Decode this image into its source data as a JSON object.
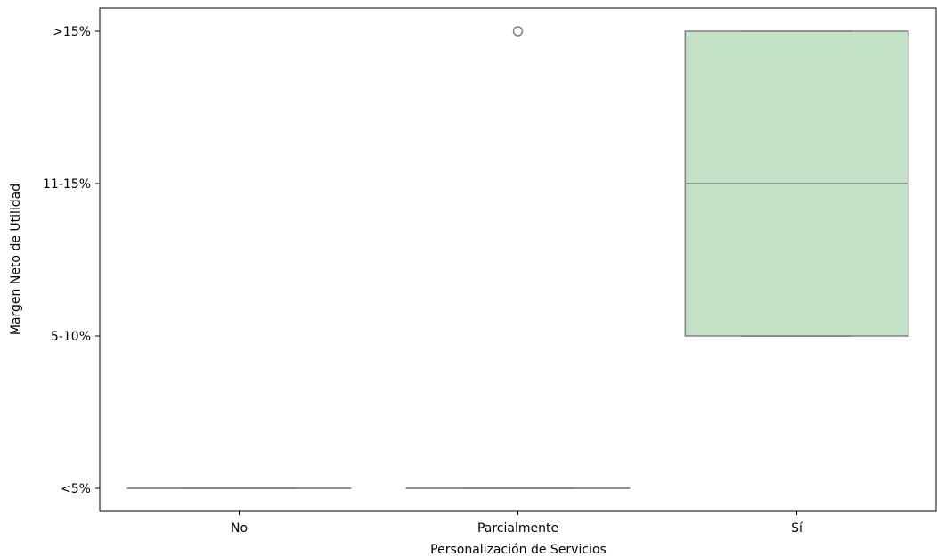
{
  "chart_data": {
    "type": "box",
    "xlabel": "Personalización de Servicios",
    "ylabel": "Margen Neto de Utilidad",
    "categories": [
      "No",
      "Parcialmente",
      "Sí"
    ],
    "y_categories": [
      "<5%",
      "5-10%",
      "11-15%",
      ">15%"
    ],
    "boxes": [
      {
        "category": "No",
        "whisker_low": "<5%",
        "q1": "<5%",
        "median": "<5%",
        "q3": "<5%",
        "whisker_high": "<5%",
        "outliers": [],
        "color": "#ffffff"
      },
      {
        "category": "Parcialmente",
        "whisker_low": "<5%",
        "q1": "<5%",
        "median": "<5%",
        "q3": "<5%",
        "whisker_high": "<5%",
        "outliers": [
          ">15%"
        ],
        "color": "#ffffff"
      },
      {
        "category": "Sí",
        "whisker_low": "5-10%",
        "q1": "5-10%",
        "median": "11-15%",
        "q3": ">15%",
        "whisker_high": ">15%",
        "outliers": [],
        "color": "#c4e3c6"
      }
    ],
    "grid": false,
    "legend": "none"
  }
}
